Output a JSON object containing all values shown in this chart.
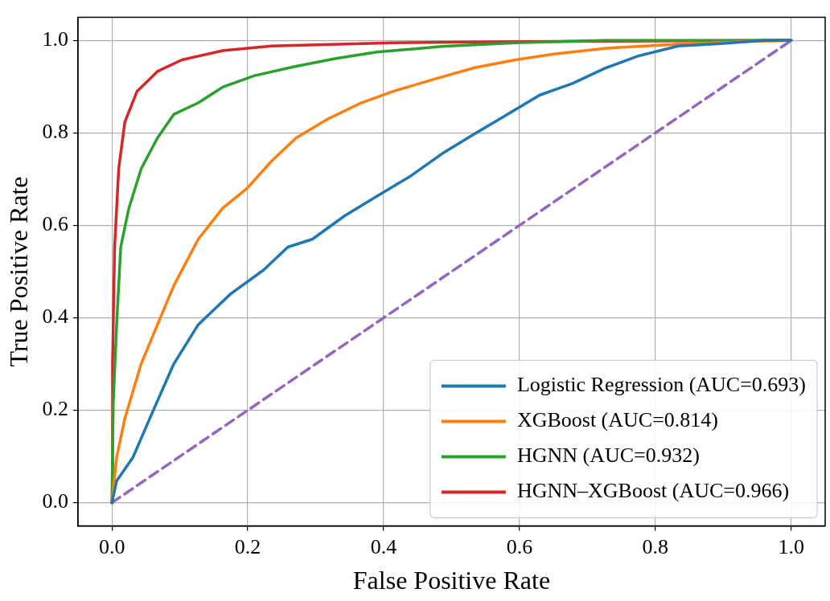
{
  "chart_data": {
    "type": "line",
    "xlabel": "False Positive Rate",
    "ylabel": "True Positive Rate",
    "xlim": [
      -0.05,
      1.05
    ],
    "ylim": [
      -0.05,
      1.05
    ],
    "xticks": [
      {
        "value": 0,
        "label": "0.0"
      },
      {
        "value": 0.2,
        "label": "0.2"
      },
      {
        "value": 0.4,
        "label": "0.4"
      },
      {
        "value": 0.6,
        "label": "0.6"
      },
      {
        "value": 0.8,
        "label": "0.8"
      },
      {
        "value": 1,
        "label": "1.0"
      }
    ],
    "yticks": [
      {
        "value": 0,
        "label": "0.0"
      },
      {
        "value": 0.2,
        "label": "0.2"
      },
      {
        "value": 0.4,
        "label": "0.4"
      },
      {
        "value": 0.6,
        "label": "0.6"
      },
      {
        "value": 0.8,
        "label": "0.8"
      },
      {
        "value": 1,
        "label": "1.0"
      }
    ],
    "grid": true,
    "legend": "bottom right",
    "marker": "none",
    "line_style": "solid",
    "series": [
      {
        "name": "Logistic Regression (AUC=0.693)",
        "color": "#1f77b4",
        "x": [
          0,
          0.007,
          0.031,
          0.061,
          0.091,
          0.127,
          0.175,
          0.223,
          0.259,
          0.295,
          0.342,
          0.39,
          0.438,
          0.486,
          0.534,
          0.582,
          0.63,
          0.678,
          0.726,
          0.774,
          0.834,
          0.893,
          0.96,
          1
        ],
        "values": [
          0,
          0.047,
          0.098,
          0.2,
          0.3,
          0.385,
          0.452,
          0.503,
          0.553,
          0.57,
          0.62,
          0.663,
          0.705,
          0.755,
          0.798,
          0.84,
          0.882,
          0.907,
          0.94,
          0.966,
          0.988,
          0.993,
          1,
          1
        ]
      },
      {
        "name": "XGBoost (AUC=0.814)",
        "color": "#ff7f0e",
        "x": [
          0,
          0.007,
          0.019,
          0.043,
          0.067,
          0.091,
          0.127,
          0.163,
          0.199,
          0.235,
          0.271,
          0.319,
          0.367,
          0.414,
          0.474,
          0.534,
          0.594,
          0.653,
          0.726,
          0.834,
          0.94,
          1
        ],
        "values": [
          0,
          0.098,
          0.182,
          0.3,
          0.385,
          0.469,
          0.57,
          0.637,
          0.68,
          0.739,
          0.789,
          0.831,
          0.865,
          0.89,
          0.916,
          0.941,
          0.958,
          0.971,
          0.983,
          0.992,
          0.998,
          1
        ]
      },
      {
        "name": "HGNN (AUC=0.932)",
        "color": "#2ca02c",
        "x": [
          0,
          0.002,
          0.007,
          0.013,
          0.025,
          0.043,
          0.067,
          0.091,
          0.127,
          0.163,
          0.21,
          0.271,
          0.33,
          0.39,
          0.486,
          0.594,
          0.726,
          1
        ],
        "values": [
          0,
          0.216,
          0.385,
          0.553,
          0.637,
          0.722,
          0.789,
          0.84,
          0.865,
          0.899,
          0.924,
          0.944,
          0.961,
          0.975,
          0.987,
          0.995,
          1,
          1
        ]
      },
      {
        "name": "HGNN–XGBoost (AUC=0.966)",
        "color": "#d62728",
        "x": [
          0,
          0.001,
          0.004,
          0.01,
          0.019,
          0.037,
          0.067,
          0.103,
          0.163,
          0.235,
          0.414,
          0.653,
          1
        ],
        "values": [
          0,
          0.3,
          0.553,
          0.722,
          0.823,
          0.89,
          0.933,
          0.958,
          0.978,
          0.988,
          0.995,
          0.998,
          1
        ]
      },
      {
        "color": "#9467bd",
        "line_style": "dashed",
        "x": [
          0,
          1
        ],
        "values": [
          0,
          1
        ]
      }
    ]
  }
}
